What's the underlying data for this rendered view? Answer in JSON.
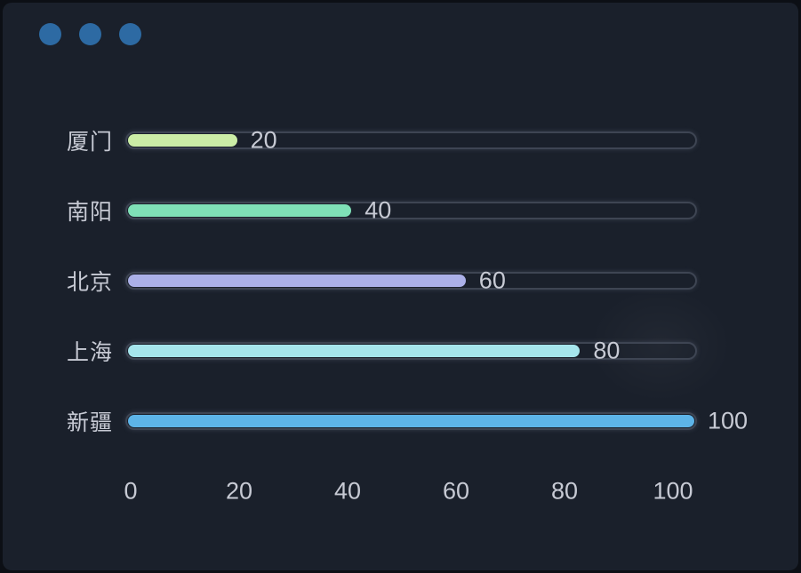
{
  "window": {
    "controls": [
      "dot",
      "dot",
      "dot"
    ],
    "dot_color": "#2d6aa3",
    "background": "#1a202b",
    "frame_color": "#0c0f15"
  },
  "chart_data": {
    "type": "bar",
    "orientation": "horizontal",
    "categories": [
      "厦门",
      "南阳",
      "北京",
      "上海",
      "新疆"
    ],
    "values": [
      20,
      40,
      60,
      80,
      100
    ],
    "value_labels": [
      "20",
      "40",
      "60",
      "80",
      "100"
    ],
    "colors": [
      "#cbeda6",
      "#7fe0b7",
      "#abb0e8",
      "#a5e5ec",
      "#5db4e8"
    ],
    "xtick_labels": [
      "0",
      "20",
      "40",
      "60",
      "80",
      "100"
    ],
    "xlim": [
      0,
      100
    ],
    "title": "",
    "xlabel": "",
    "ylabel": "",
    "grid": false,
    "legend": "none",
    "track_border_color": "#3e4553",
    "text_color": "#c7cad4"
  }
}
